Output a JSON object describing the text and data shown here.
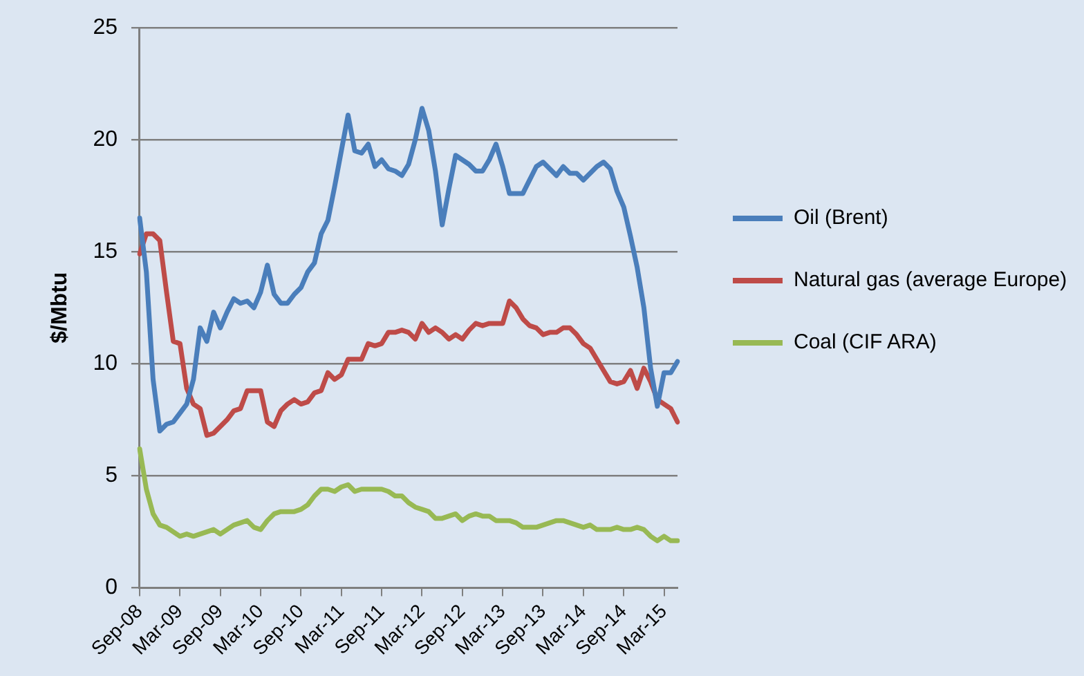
{
  "chart_data": {
    "type": "line",
    "ylabel": "$/Mbtu",
    "categories": [
      "Sep-08",
      null,
      null,
      null,
      null,
      null,
      "Mar-09",
      null,
      null,
      null,
      null,
      null,
      "Sep-09",
      null,
      null,
      null,
      null,
      null,
      "Mar-10",
      null,
      null,
      null,
      null,
      null,
      "Sep-10",
      null,
      null,
      null,
      null,
      null,
      "Mar-11",
      null,
      null,
      null,
      null,
      null,
      "Sep-11",
      null,
      null,
      null,
      null,
      null,
      "Mar-12",
      null,
      null,
      null,
      null,
      null,
      "Sep-12",
      null,
      null,
      null,
      null,
      null,
      "Mar-13",
      null,
      null,
      null,
      null,
      null,
      "Sep-13",
      null,
      null,
      null,
      null,
      null,
      "Mar-14",
      null,
      null,
      null,
      null,
      null,
      "Sep-14",
      null,
      null,
      null,
      null,
      null,
      "Mar-15",
      null,
      null
    ],
    "series": [
      {
        "name": "Oil (Brent)",
        "color": "#4a7ebb",
        "values": [
          16.5,
          14.1,
          9.3,
          7.0,
          7.3,
          7.4,
          7.8,
          8.2,
          9.3,
          11.6,
          11.0,
          12.3,
          11.6,
          12.3,
          12.9,
          12.7,
          12.8,
          12.5,
          13.2,
          14.4,
          13.1,
          12.7,
          12.7,
          13.1,
          13.4,
          14.1,
          14.5,
          15.8,
          16.4,
          17.9,
          19.5,
          21.1,
          19.5,
          19.4,
          19.8,
          18.8,
          19.1,
          18.7,
          18.6,
          18.4,
          18.9,
          20.0,
          21.4,
          20.4,
          18.6,
          16.2,
          17.8,
          19.3,
          19.1,
          18.9,
          18.6,
          18.6,
          19.1,
          19.8,
          18.8,
          17.6,
          17.6,
          17.6,
          18.2,
          18.8,
          19.0,
          18.7,
          18.4,
          18.8,
          18.5,
          18.5,
          18.2,
          18.5,
          18.8,
          19.0,
          18.7,
          17.7,
          17.0,
          15.7,
          14.3,
          12.5,
          9.8,
          8.1,
          9.6,
          9.6,
          10.1
        ]
      },
      {
        "name": "Natural gas (average Europe)",
        "color": "#be4b48",
        "values": [
          14.9,
          15.8,
          15.8,
          15.5,
          13.2,
          11.0,
          10.9,
          8.9,
          8.2,
          8.0,
          6.8,
          6.9,
          7.2,
          7.5,
          7.9,
          8.0,
          8.8,
          8.8,
          8.8,
          7.4,
          7.2,
          7.9,
          8.2,
          8.4,
          8.2,
          8.3,
          8.7,
          8.8,
          9.6,
          9.3,
          9.5,
          10.2,
          10.2,
          10.2,
          10.9,
          10.8,
          10.9,
          11.4,
          11.4,
          11.5,
          11.4,
          11.1,
          11.8,
          11.4,
          11.6,
          11.4,
          11.1,
          11.3,
          11.1,
          11.5,
          11.8,
          11.7,
          11.8,
          11.8,
          11.8,
          12.8,
          12.5,
          12.0,
          11.7,
          11.6,
          11.3,
          11.4,
          11.4,
          11.6,
          11.6,
          11.3,
          10.9,
          10.7,
          10.2,
          9.7,
          9.2,
          9.1,
          9.2,
          9.7,
          8.9,
          9.8,
          9.2,
          8.4,
          8.2,
          8.0,
          7.4
        ]
      },
      {
        "name": "Coal (CIF ARA)",
        "color": "#98b954",
        "values": [
          6.2,
          4.4,
          3.3,
          2.8,
          2.7,
          2.5,
          2.3,
          2.4,
          2.3,
          2.4,
          2.5,
          2.6,
          2.4,
          2.6,
          2.8,
          2.9,
          3.0,
          2.7,
          2.6,
          3.0,
          3.3,
          3.4,
          3.4,
          3.4,
          3.5,
          3.7,
          4.1,
          4.4,
          4.4,
          4.3,
          4.5,
          4.6,
          4.3,
          4.4,
          4.4,
          4.4,
          4.4,
          4.3,
          4.1,
          4.1,
          3.8,
          3.6,
          3.5,
          3.4,
          3.1,
          3.1,
          3.2,
          3.3,
          3.0,
          3.2,
          3.3,
          3.2,
          3.2,
          3.0,
          3.0,
          3.0,
          2.9,
          2.7,
          2.7,
          2.7,
          2.8,
          2.9,
          3.0,
          3.0,
          2.9,
          2.8,
          2.7,
          2.8,
          2.6,
          2.6,
          2.6,
          2.7,
          2.6,
          2.6,
          2.7,
          2.6,
          2.3,
          2.1,
          2.3,
          2.1,
          2.1
        ]
      }
    ],
    "ylim": [
      0,
      25
    ],
    "yticks": [
      0,
      5,
      10,
      15,
      20,
      25
    ],
    "grid": "y",
    "legend": "right",
    "marker": "none",
    "line_style": "solid"
  }
}
